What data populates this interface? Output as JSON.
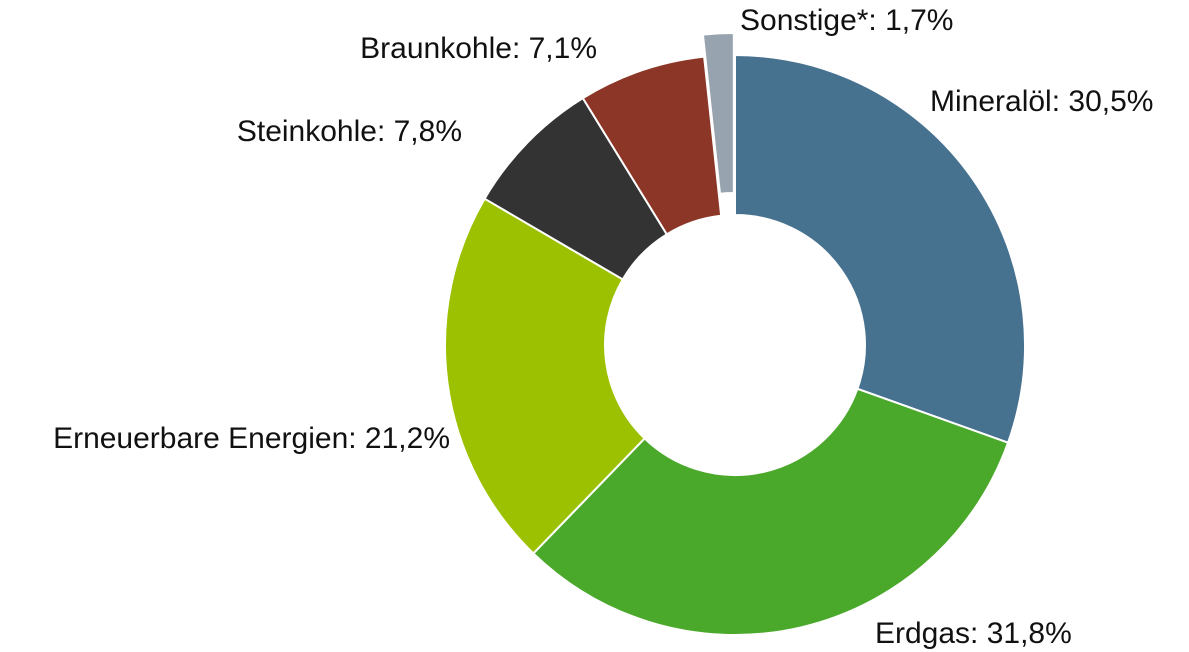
{
  "chart_data": {
    "type": "donut",
    "value_labels": [
      "Mineralöl: 30,5%",
      "Erdgas: 31,8%",
      "Erneuerbare Energien: 21,2%",
      "Steinkohle: 7,8%",
      "Braunkohle: 7,1%",
      "Sonstige*: 1,7%"
    ],
    "values": [
      30.5,
      31.8,
      21.2,
      7.8,
      7.1,
      1.7
    ],
    "colors": [
      "#47728f",
      "#4aa82a",
      "#9cc100",
      "#333333",
      "#8b3626",
      "#97a3ae"
    ],
    "explode": [
      false,
      false,
      false,
      false,
      false,
      true
    ]
  }
}
